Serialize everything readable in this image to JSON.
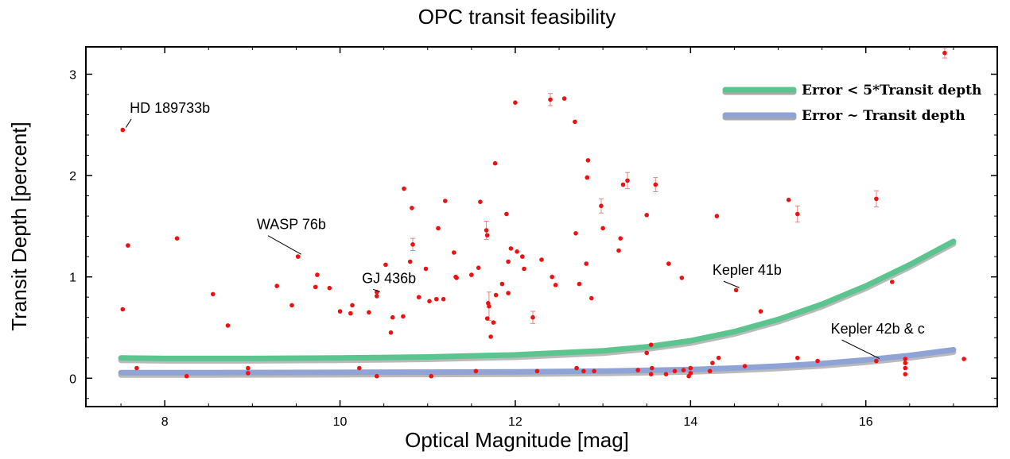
{
  "chart_data": {
    "type": "scatter",
    "title": "OPC transit feasibility",
    "xlabel": "Optical Magnitude [mag]",
    "ylabel": "Transit Depth [percent]",
    "xlim": [
      7.1,
      17.5
    ],
    "ylim": [
      -0.28,
      3.27
    ],
    "xticks": [
      8,
      10,
      12,
      14,
      16
    ],
    "yticks": [
      0,
      1,
      2,
      3
    ],
    "grid": false,
    "legend_position": "top-right",
    "colors": {
      "points": "#ee1111",
      "curve_green": "#5cc48e",
      "curve_blue": "#8fa3d6",
      "curve_shadow": "#a9a9a9"
    },
    "legend": [
      {
        "label": "Error < 5*Transit depth",
        "color": "#5cc48e"
      },
      {
        "label": "Error ~ Transit depth",
        "color": "#8fa3d6"
      }
    ],
    "curves": [
      {
        "name": "Error < 5*Transit depth",
        "color": "#5cc48e",
        "x": [
          7.5,
          8.0,
          9.0,
          10.0,
          11.0,
          12.0,
          13.0,
          13.5,
          14.0,
          14.5,
          15.0,
          15.5,
          16.0,
          16.5,
          17.0
        ],
        "y": [
          0.2,
          0.195,
          0.195,
          0.2,
          0.21,
          0.23,
          0.27,
          0.31,
          0.37,
          0.46,
          0.58,
          0.73,
          0.91,
          1.12,
          1.35
        ]
      },
      {
        "name": "Error ~ Transit depth",
        "color": "#8fa3d6",
        "x": [
          7.5,
          8.0,
          9.0,
          10.0,
          11.0,
          12.0,
          13.0,
          14.0,
          14.5,
          15.0,
          15.5,
          16.0,
          16.5,
          17.0
        ],
        "y": [
          0.055,
          0.055,
          0.056,
          0.058,
          0.06,
          0.063,
          0.07,
          0.085,
          0.1,
          0.12,
          0.145,
          0.18,
          0.225,
          0.28
        ]
      }
    ],
    "points": [
      {
        "x": 7.52,
        "y": 2.45
      },
      {
        "x": 7.52,
        "y": 0.68
      },
      {
        "x": 7.58,
        "y": 1.31
      },
      {
        "x": 7.68,
        "y": 0.1
      },
      {
        "x": 8.14,
        "y": 1.38
      },
      {
        "x": 8.25,
        "y": 0.02
      },
      {
        "x": 8.55,
        "y": 0.83
      },
      {
        "x": 8.72,
        "y": 0.52
      },
      {
        "x": 8.95,
        "y": 0.1
      },
      {
        "x": 8.95,
        "y": 0.05
      },
      {
        "x": 9.28,
        "y": 0.91
      },
      {
        "x": 9.45,
        "y": 0.72
      },
      {
        "x": 9.52,
        "y": 1.2
      },
      {
        "x": 9.72,
        "y": 0.9
      },
      {
        "x": 9.74,
        "y": 1.02
      },
      {
        "x": 9.88,
        "y": 0.89
      },
      {
        "x": 10.0,
        "y": 0.66
      },
      {
        "x": 10.12,
        "y": 0.64
      },
      {
        "x": 10.14,
        "y": 0.72
      },
      {
        "x": 10.22,
        "y": 0.1
      },
      {
        "x": 10.33,
        "y": 0.65
      },
      {
        "x": 10.42,
        "y": 0.02
      },
      {
        "x": 10.42,
        "y": 0.81
      },
      {
        "x": 10.42,
        "y": 0.85
      },
      {
        "x": 10.52,
        "y": 1.12
      },
      {
        "x": 10.58,
        "y": 0.45
      },
      {
        "x": 10.6,
        "y": 0.6
      },
      {
        "x": 10.72,
        "y": 0.61
      },
      {
        "x": 10.73,
        "y": 1.87
      },
      {
        "x": 10.8,
        "y": 1.15
      },
      {
        "x": 10.82,
        "y": 1.68
      },
      {
        "x": 10.83,
        "y": 1.32
      },
      {
        "x": 10.9,
        "y": 0.8
      },
      {
        "x": 10.98,
        "y": 1.08
      },
      {
        "x": 11.02,
        "y": 0.76
      },
      {
        "x": 11.04,
        "y": 0.02
      },
      {
        "x": 11.1,
        "y": 0.78
      },
      {
        "x": 11.12,
        "y": 1.48
      },
      {
        "x": 11.18,
        "y": 0.78
      },
      {
        "x": 11.2,
        "y": 1.75
      },
      {
        "x": 11.3,
        "y": 1.24
      },
      {
        "x": 11.32,
        "y": 1.0
      },
      {
        "x": 11.33,
        "y": 0.99
      },
      {
        "x": 11.5,
        "y": 1.02
      },
      {
        "x": 11.55,
        "y": 0.07
      },
      {
        "x": 11.58,
        "y": 1.09
      },
      {
        "x": 11.6,
        "y": 1.74
      },
      {
        "x": 11.67,
        "y": 1.46
      },
      {
        "x": 11.68,
        "y": 1.41
      },
      {
        "x": 11.68,
        "y": 0.59
      },
      {
        "x": 11.69,
        "y": 0.74
      },
      {
        "x": 11.7,
        "y": 0.71
      },
      {
        "x": 11.72,
        "y": 0.41
      },
      {
        "x": 11.75,
        "y": 0.55
      },
      {
        "x": 11.77,
        "y": 2.12
      },
      {
        "x": 11.78,
        "y": 0.82
      },
      {
        "x": 11.85,
        "y": 0.93
      },
      {
        "x": 11.9,
        "y": 1.62
      },
      {
        "x": 11.92,
        "y": 1.15
      },
      {
        "x": 11.92,
        "y": 0.84
      },
      {
        "x": 11.95,
        "y": 1.28
      },
      {
        "x": 12.0,
        "y": 2.72
      },
      {
        "x": 12.02,
        "y": 1.25
      },
      {
        "x": 12.08,
        "y": 1.2
      },
      {
        "x": 12.1,
        "y": 1.08
      },
      {
        "x": 12.2,
        "y": 0.6
      },
      {
        "x": 12.25,
        "y": 0.07
      },
      {
        "x": 12.3,
        "y": 1.17
      },
      {
        "x": 12.4,
        "y": 2.75
      },
      {
        "x": 12.42,
        "y": 1.0
      },
      {
        "x": 12.46,
        "y": 0.92
      },
      {
        "x": 12.56,
        "y": 2.76
      },
      {
        "x": 12.68,
        "y": 2.53
      },
      {
        "x": 12.69,
        "y": 1.43
      },
      {
        "x": 12.7,
        "y": 0.1
      },
      {
        "x": 12.73,
        "y": 0.93
      },
      {
        "x": 12.78,
        "y": 0.07
      },
      {
        "x": 12.81,
        "y": 1.13
      },
      {
        "x": 12.82,
        "y": 1.98
      },
      {
        "x": 12.83,
        "y": 2.15
      },
      {
        "x": 12.87,
        "y": 0.79
      },
      {
        "x": 12.9,
        "y": 0.07
      },
      {
        "x": 12.98,
        "y": 1.7
      },
      {
        "x": 13.0,
        "y": 1.48
      },
      {
        "x": 13.18,
        "y": 1.26
      },
      {
        "x": 13.2,
        "y": 1.38
      },
      {
        "x": 13.23,
        "y": 1.91
      },
      {
        "x": 13.28,
        "y": 1.95
      },
      {
        "x": 13.4,
        "y": 0.08
      },
      {
        "x": 13.5,
        "y": 1.61
      },
      {
        "x": 13.5,
        "y": 0.25
      },
      {
        "x": 13.55,
        "y": 0.33
      },
      {
        "x": 13.55,
        "y": 0.04
      },
      {
        "x": 13.56,
        "y": 0.1
      },
      {
        "x": 13.6,
        "y": 1.91
      },
      {
        "x": 13.72,
        "y": 0.04
      },
      {
        "x": 13.75,
        "y": 1.13
      },
      {
        "x": 13.82,
        "y": 0.07
      },
      {
        "x": 13.9,
        "y": 0.99
      },
      {
        "x": 13.92,
        "y": 0.08
      },
      {
        "x": 13.98,
        "y": 0.02
      },
      {
        "x": 14.0,
        "y": 0.05
      },
      {
        "x": 14.0,
        "y": 0.1
      },
      {
        "x": 14.22,
        "y": 0.07
      },
      {
        "x": 14.25,
        "y": 0.15
      },
      {
        "x": 14.3,
        "y": 1.6
      },
      {
        "x": 14.32,
        "y": 0.2
      },
      {
        "x": 14.52,
        "y": 0.87
      },
      {
        "x": 14.62,
        "y": 0.12
      },
      {
        "x": 14.8,
        "y": 0.66
      },
      {
        "x": 15.12,
        "y": 1.76
      },
      {
        "x": 15.22,
        "y": 1.62
      },
      {
        "x": 15.22,
        "y": 0.2
      },
      {
        "x": 15.45,
        "y": 0.17
      },
      {
        "x": 16.12,
        "y": 1.77
      },
      {
        "x": 16.12,
        "y": 0.17
      },
      {
        "x": 16.3,
        "y": 0.95
      },
      {
        "x": 16.45,
        "y": 0.19
      },
      {
        "x": 16.45,
        "y": 0.15
      },
      {
        "x": 16.45,
        "y": 0.1
      },
      {
        "x": 16.45,
        "y": 0.04
      },
      {
        "x": 16.9,
        "y": 3.21
      },
      {
        "x": 17.12,
        "y": 0.19
      }
    ],
    "error_bars": [
      {
        "x": 11.67,
        "y": 1.46,
        "err": 0.09
      },
      {
        "x": 11.7,
        "y": 0.71,
        "err": 0.14
      },
      {
        "x": 12.4,
        "y": 2.75,
        "err": 0.06
      },
      {
        "x": 12.2,
        "y": 0.6,
        "err": 0.06
      },
      {
        "x": 12.98,
        "y": 1.7,
        "err": 0.07
      },
      {
        "x": 13.28,
        "y": 1.95,
        "err": 0.08
      },
      {
        "x": 13.6,
        "y": 1.91,
        "err": 0.07
      },
      {
        "x": 15.22,
        "y": 1.62,
        "err": 0.08
      },
      {
        "x": 16.12,
        "y": 1.77,
        "err": 0.08
      },
      {
        "x": 16.9,
        "y": 3.21,
        "err": 0.05
      },
      {
        "x": 10.83,
        "y": 1.32,
        "err": 0.06
      }
    ],
    "annotations": [
      {
        "text": "HD 189733b",
        "point": [
          7.52,
          2.45
        ],
        "label_pos": [
          7.6,
          2.62
        ]
      },
      {
        "text": "WASP 76b",
        "point": [
          9.52,
          1.2
        ],
        "label_pos": [
          9.05,
          1.47
        ]
      },
      {
        "text": "GJ 436b",
        "point": [
          10.42,
          0.83
        ],
        "label_pos": [
          10.25,
          0.94
        ]
      },
      {
        "text": "Kepler 41b",
        "point": [
          14.52,
          0.87
        ],
        "label_pos": [
          14.25,
          1.02
        ]
      },
      {
        "text": "Kepler 42b & c",
        "point": [
          16.12,
          0.17
        ],
        "label_pos": [
          15.6,
          0.44
        ]
      }
    ]
  }
}
